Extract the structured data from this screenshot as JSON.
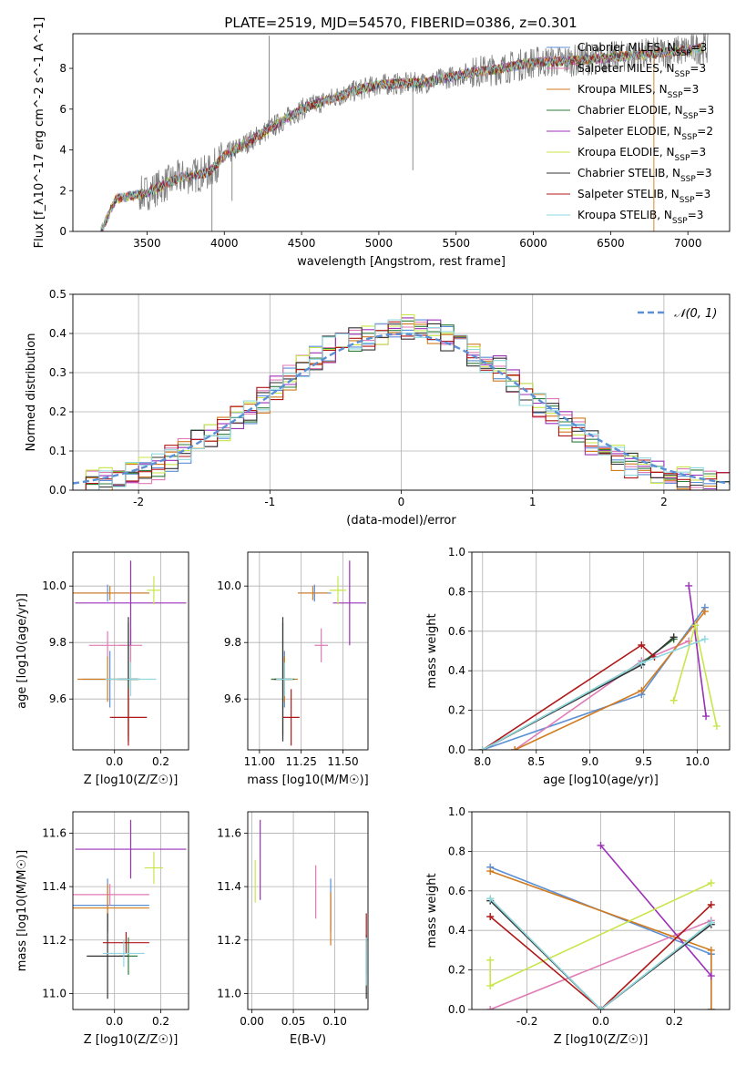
{
  "figure_title": "PLATE=2519, MJD=54570, FIBERID=0386, z=0.301",
  "series_styles": [
    {
      "name": "Chabrier MILES",
      "nssp": "3",
      "color": "#5b8fd6"
    },
    {
      "name": "Salpeter MILES",
      "nssp": "3",
      "color": "#e07ab6"
    },
    {
      "name": "Kroupa MILES",
      "nssp": "3",
      "color": "#d17a1e"
    },
    {
      "name": "Chabrier ELODIE",
      "nssp": "3",
      "color": "#2f7d3a"
    },
    {
      "name": "Salpeter ELODIE",
      "nssp": "2",
      "color": "#9b30b8"
    },
    {
      "name": "Kroupa ELODIE",
      "nssp": "3",
      "color": "#c8e64a"
    },
    {
      "name": "Chabrier STELIB",
      "nssp": "3",
      "color": "#333333"
    },
    {
      "name": "Salpeter STELIB",
      "nssp": "3",
      "color": "#b01818"
    },
    {
      "name": "Kroupa STELIB",
      "nssp": "3",
      "color": "#8fd8e0"
    }
  ],
  "chart_data": [
    {
      "id": "spectrum",
      "type": "line",
      "title": "PLATE=2519, MJD=54570, FIBERID=0386, z=0.301",
      "xlabel": "wavelength [Angstrom, rest frame]",
      "ylabel": "Flux [f_λ10^-17 erg cm^-2 s^-1 A^-1]",
      "xlim": [
        3020,
        7270
      ],
      "ylim": [
        0,
        9.7
      ],
      "xticks": [
        3500,
        4000,
        4500,
        5000,
        5500,
        6000,
        6500,
        7000
      ],
      "yticks": [
        0,
        2,
        4,
        6,
        8
      ],
      "grid": false,
      "legend": "right",
      "continuum": {
        "x": [
          3200,
          3300,
          3500,
          3700,
          3900,
          4000,
          4200,
          4500,
          4800,
          5000,
          5300,
          5600,
          5800,
          6000,
          6300,
          6600,
          7000,
          7100
        ],
        "y": [
          0.0,
          1.6,
          1.9,
          2.6,
          2.9,
          3.7,
          4.6,
          6.0,
          6.8,
          7.2,
          7.3,
          7.8,
          8.0,
          8.3,
          8.4,
          8.6,
          8.9,
          9.0
        ]
      }
    },
    {
      "id": "residuals",
      "type": "line",
      "xlabel": "(data-model)/error",
      "ylabel": "Normed distribution",
      "xlim": [
        -2.5,
        2.5
      ],
      "ylim": [
        0,
        0.5
      ],
      "xticks": [
        -2,
        -1,
        0,
        1,
        2
      ],
      "yticks": [
        0.0,
        0.1,
        0.2,
        0.3,
        0.4,
        0.5
      ],
      "grid": true,
      "legend": "top-right",
      "legend_label": "𝒩(0, 1)",
      "hist_edges_start": -2.5,
      "hist_bin_width": 0.1,
      "hist_base": [
        0.02,
        0.025,
        0.03,
        0.035,
        0.04,
        0.05,
        0.06,
        0.08,
        0.1,
        0.12,
        0.14,
        0.16,
        0.18,
        0.2,
        0.23,
        0.26,
        0.29,
        0.31,
        0.34,
        0.36,
        0.37,
        0.38,
        0.39,
        0.4,
        0.41,
        0.42,
        0.41,
        0.4,
        0.39,
        0.37,
        0.35,
        0.33,
        0.31,
        0.28,
        0.25,
        0.22,
        0.2,
        0.17,
        0.15,
        0.12,
        0.1,
        0.08,
        0.06,
        0.05,
        0.04,
        0.035,
        0.03,
        0.025,
        0.02,
        0.02
      ]
    },
    {
      "id": "z-age",
      "type": "scatter",
      "xlabel": "Z [log10(Z/Z☉)]",
      "ylabel": "age [log10(age/yr)]",
      "xlim": [
        -0.18,
        0.32
      ],
      "ylim": [
        9.42,
        10.12
      ],
      "xticks": [
        0.0,
        0.2
      ],
      "yticks": [
        9.6,
        9.8,
        10.0
      ],
      "points": [
        {
          "s": 0,
          "x": -0.03,
          "y": 9.975,
          "ex": 0.18,
          "ey": 0.03
        },
        {
          "s": 0,
          "x": -0.02,
          "y": 9.67,
          "ex": 0.12,
          "ey": 0.1
        },
        {
          "s": 1,
          "x": -0.03,
          "y": 9.79,
          "ex": 0.08,
          "ey": 0.05
        },
        {
          "s": 1,
          "x": 0.07,
          "y": 9.79,
          "ex": 0.05,
          "ey": 0.06
        },
        {
          "s": 2,
          "x": -0.02,
          "y": 9.975,
          "ex": 0.17,
          "ey": 0.025
        },
        {
          "s": 2,
          "x": -0.03,
          "y": 9.67,
          "ex": 0.13,
          "ey": 0.08
        },
        {
          "s": 3,
          "x": 0.06,
          "y": 9.67,
          "ex": 0.04,
          "ey": 0.2
        },
        {
          "s": 4,
          "x": 0.07,
          "y": 9.94,
          "ex": 0.24,
          "ey": 0.15
        },
        {
          "s": 5,
          "x": 0.17,
          "y": 9.985,
          "ex": 0.03,
          "ey": 0.05
        },
        {
          "s": 6,
          "x": 0.06,
          "y": 9.67,
          "ex": 0.05,
          "ey": 0.22
        },
        {
          "s": 7,
          "x": 0.06,
          "y": 9.535,
          "ex": 0.08,
          "ey": 0.1
        },
        {
          "s": 8,
          "x": 0.07,
          "y": 9.67,
          "ex": 0.11,
          "ey": 0.06
        }
      ]
    },
    {
      "id": "mass-age",
      "type": "scatter",
      "xlabel": "mass [log10(M/M☉)]",
      "ylabel": "",
      "xlim": [
        10.93,
        11.65
      ],
      "ylim": [
        9.42,
        10.12
      ],
      "xticks": [
        11.0,
        11.25,
        11.5
      ],
      "yticks": [
        9.6,
        9.8,
        10.0
      ],
      "points": [
        {
          "s": 0,
          "x": 11.33,
          "y": 9.975,
          "ex": 0.1,
          "ey": 0.03
        },
        {
          "s": 0,
          "x": 11.15,
          "y": 9.67,
          "ex": 0.05,
          "ey": 0.1
        },
        {
          "s": 1,
          "x": 11.37,
          "y": 9.79,
          "ex": 0.04,
          "ey": 0.06
        },
        {
          "s": 2,
          "x": 11.32,
          "y": 9.975,
          "ex": 0.09,
          "ey": 0.025
        },
        {
          "s": 2,
          "x": 11.15,
          "y": 9.67,
          "ex": 0.08,
          "ey": 0.08
        },
        {
          "s": 3,
          "x": 11.14,
          "y": 9.67,
          "ex": 0.07,
          "ey": 0.2
        },
        {
          "s": 4,
          "x": 11.54,
          "y": 9.94,
          "ex": 0.1,
          "ey": 0.15
        },
        {
          "s": 5,
          "x": 11.47,
          "y": 9.985,
          "ex": 0.05,
          "ey": 0.05
        },
        {
          "s": 6,
          "x": 11.14,
          "y": 9.67,
          "ex": 0.05,
          "ey": 0.22
        },
        {
          "s": 7,
          "x": 11.19,
          "y": 9.535,
          "ex": 0.05,
          "ey": 0.1
        },
        {
          "s": 8,
          "x": 11.15,
          "y": 9.67,
          "ex": 0.05,
          "ey": 0.06
        }
      ]
    },
    {
      "id": "age-weight",
      "type": "line",
      "xlabel": "age [log10(age/yr)]",
      "ylabel": "mass weight",
      "xlim": [
        7.9,
        10.3
      ],
      "ylim": [
        0,
        1
      ],
      "xticks": [
        8.0,
        8.5,
        9.0,
        9.5,
        10.0
      ],
      "yticks": [
        0.0,
        0.2,
        0.4,
        0.6,
        0.8,
        1.0
      ],
      "series": [
        {
          "s": 0,
          "x": [
            8.0,
            9.48,
            10.07
          ],
          "y": [
            0.0,
            0.28,
            0.72
          ]
        },
        {
          "s": 1,
          "x": [
            8.3,
            9.48,
            9.92
          ],
          "y": [
            0.0,
            0.45,
            0.55
          ]
        },
        {
          "s": 2,
          "x": [
            8.3,
            9.48,
            10.07
          ],
          "y": [
            0.0,
            0.3,
            0.7
          ]
        },
        {
          "s": 3,
          "x": [
            8.0,
            9.48,
            9.78
          ],
          "y": [
            0.0,
            0.44,
            0.56
          ]
        },
        {
          "s": 4,
          "x": [
            9.92,
            10.08
          ],
          "y": [
            0.83,
            0.17
          ]
        },
        {
          "s": 5,
          "x": [
            9.78,
            9.98,
            10.18
          ],
          "y": [
            0.25,
            0.63,
            0.12
          ]
        },
        {
          "s": 6,
          "x": [
            8.0,
            9.48,
            9.78
          ],
          "y": [
            0.0,
            0.43,
            0.57
          ]
        },
        {
          "s": 7,
          "x": [
            8.0,
            9.48,
            9.6
          ],
          "y": [
            0.0,
            0.53,
            0.47
          ]
        },
        {
          "s": 8,
          "x": [
            8.0,
            9.48,
            10.07
          ],
          "y": [
            0.0,
            0.44,
            0.56
          ]
        }
      ]
    },
    {
      "id": "z-mass",
      "type": "scatter",
      "xlabel": "Z [log10(Z/Z☉)]",
      "ylabel": "mass [log10(M/M☉)]",
      "xlim": [
        -0.18,
        0.32
      ],
      "ylim": [
        10.94,
        11.68
      ],
      "xticks": [
        0.0,
        0.2
      ],
      "yticks": [
        11.0,
        11.2,
        11.4,
        11.6
      ],
      "points": [
        {
          "s": 0,
          "x": -0.03,
          "y": 11.33,
          "ex": 0.18,
          "ey": 0.1
        },
        {
          "s": 1,
          "x": -0.02,
          "y": 11.37,
          "ex": 0.17,
          "ey": 0.04
        },
        {
          "s": 2,
          "x": -0.03,
          "y": 11.32,
          "ex": 0.18,
          "ey": 0.09
        },
        {
          "s": 3,
          "x": 0.06,
          "y": 11.14,
          "ex": 0.04,
          "ey": 0.07
        },
        {
          "s": 4,
          "x": 0.07,
          "y": 11.54,
          "ex": 0.24,
          "ey": 0.11
        },
        {
          "s": 5,
          "x": 0.17,
          "y": 11.47,
          "ex": 0.04,
          "ey": 0.06
        },
        {
          "s": 6,
          "x": -0.03,
          "y": 11.14,
          "ex": 0.09,
          "ey": 0.16
        },
        {
          "s": 7,
          "x": 0.05,
          "y": 11.19,
          "ex": 0.1,
          "ey": 0.04
        },
        {
          "s": 8,
          "x": 0.04,
          "y": 11.15,
          "ex": 0.09,
          "ey": 0.05
        }
      ]
    },
    {
      "id": "ebv-mass",
      "type": "scatter",
      "xlabel": "E(B-V)",
      "ylabel": "",
      "xlim": [
        -0.005,
        0.14
      ],
      "ylim": [
        10.94,
        11.68
      ],
      "xticks": [
        0.0,
        0.05,
        0.1
      ],
      "yticks": [
        11.0,
        11.2,
        11.4,
        11.6
      ],
      "points": [
        {
          "s": 0,
          "x": 0.095,
          "y": 11.33,
          "ex": 0,
          "ey": 0.1
        },
        {
          "s": 1,
          "x": 0.077,
          "y": 11.38,
          "ex": 0,
          "ey": 0.1
        },
        {
          "s": 2,
          "x": 0.095,
          "y": 11.28,
          "ex": 0,
          "ey": 0.1
        },
        {
          "s": 3,
          "x": 0.138,
          "y": 11.14,
          "ex": 0,
          "ey": 0.07
        },
        {
          "s": 4,
          "x": 0.01,
          "y": 11.5,
          "ex": 0,
          "ey": 0.15
        },
        {
          "s": 5,
          "x": 0.004,
          "y": 11.42,
          "ex": 0,
          "ey": 0.08
        },
        {
          "s": 6,
          "x": 0.138,
          "y": 11.1,
          "ex": 0,
          "ey": 0.12
        },
        {
          "s": 7,
          "x": 0.138,
          "y": 11.23,
          "ex": 0,
          "ey": 0.07
        },
        {
          "s": 8,
          "x": 0.138,
          "y": 11.12,
          "ex": 0,
          "ey": 0.09
        }
      ]
    },
    {
      "id": "z-weight",
      "type": "line",
      "xlabel": "Z [log10(Z/Z☉)]",
      "ylabel": "mass weight",
      "xlim": [
        -0.35,
        0.35
      ],
      "ylim": [
        0,
        1
      ],
      "xticks": [
        -0.2,
        0.0,
        0.2
      ],
      "yticks": [
        0.0,
        0.2,
        0.4,
        0.6,
        0.8,
        1.0
      ],
      "series": [
        {
          "s": 0,
          "x": [
            -0.3,
            0.3,
            0.3
          ],
          "y": [
            0.72,
            0.28,
            0.0
          ]
        },
        {
          "s": 1,
          "x": [
            -0.3,
            0.3
          ],
          "y": [
            0.0,
            0.45
          ]
        },
        {
          "s": 2,
          "x": [
            -0.3,
            0.3,
            0.3
          ],
          "y": [
            0.7,
            0.3,
            0.0
          ]
        },
        {
          "s": 3,
          "x": [
            -0.3,
            0.0,
            0.3
          ],
          "y": [
            0.56,
            0.0,
            0.44
          ]
        },
        {
          "s": 4,
          "x": [
            0.0,
            0.3
          ],
          "y": [
            0.83,
            0.17
          ]
        },
        {
          "s": 5,
          "x": [
            -0.3,
            -0.3,
            0.3
          ],
          "y": [
            0.25,
            0.12,
            0.64
          ]
        },
        {
          "s": 6,
          "x": [
            -0.3,
            0.0,
            0.3
          ],
          "y": [
            0.55,
            0.0,
            0.43
          ]
        },
        {
          "s": 7,
          "x": [
            -0.3,
            0.0,
            0.3
          ],
          "y": [
            0.47,
            0.0,
            0.53
          ]
        },
        {
          "s": 8,
          "x": [
            -0.3,
            0.0,
            0.3
          ],
          "y": [
            0.56,
            0.0,
            0.44
          ]
        }
      ]
    }
  ]
}
